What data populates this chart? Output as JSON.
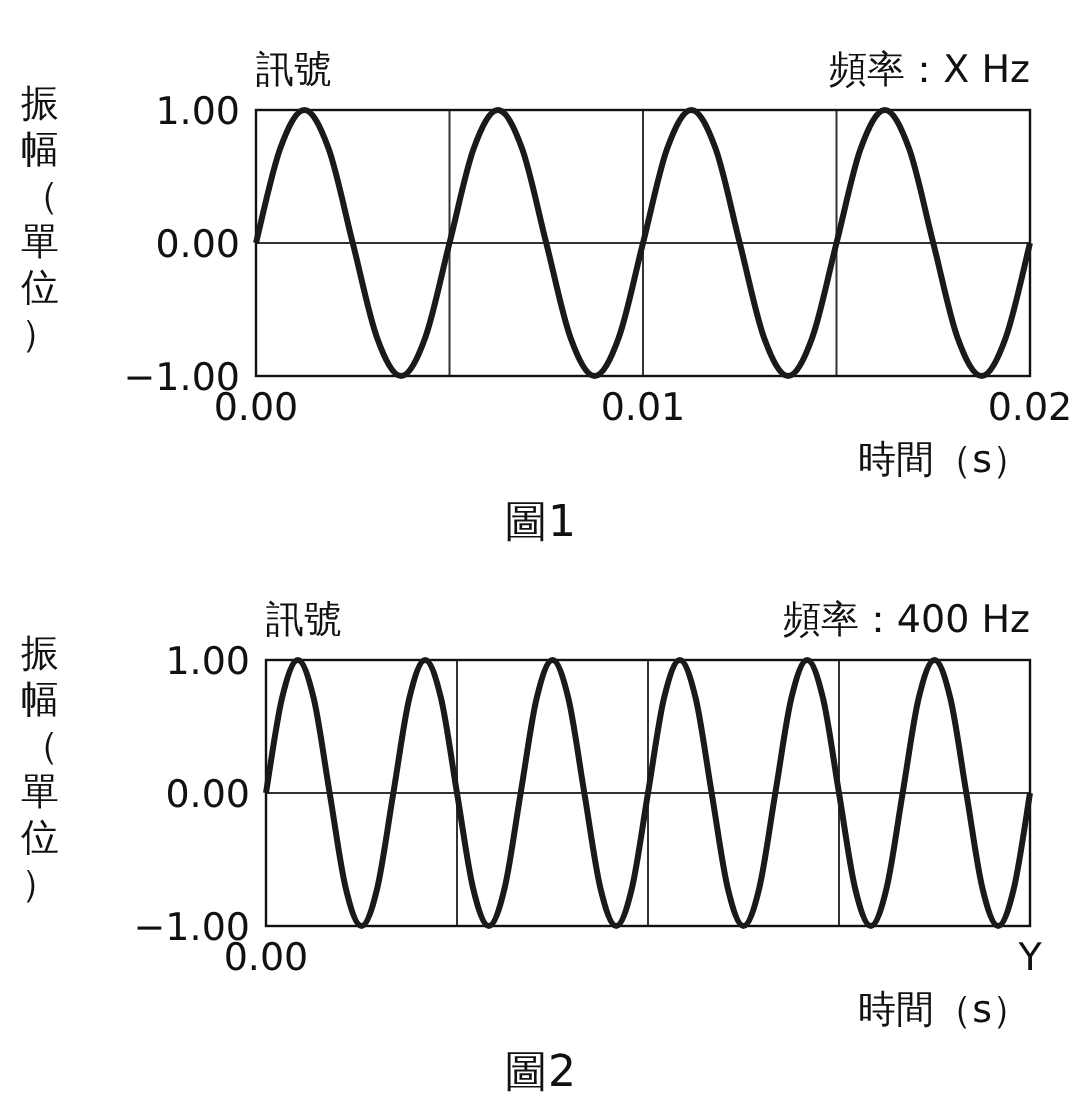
{
  "chart_data": [
    {
      "type": "line",
      "title": "訊號",
      "subtitle": "頻率：X Hz",
      "xlabel": "時間（s）",
      "ylabel": "振幅（單位）",
      "annotations": [
        "圖1"
      ],
      "x": [
        0,
        0.000625,
        0.00125,
        0.001875,
        0.0025,
        0.003125,
        0.00375,
        0.004375,
        0.005,
        0.005625,
        0.00625,
        0.006875,
        0.0075,
        0.008125,
        0.00875,
        0.009375,
        0.01,
        0.010625,
        0.01125,
        0.011875,
        0.0125,
        0.013125,
        0.01375,
        0.014375,
        0.015,
        0.015625,
        0.01625,
        0.016875,
        0.0175,
        0.018125,
        0.01875,
        0.019375,
        0.02
      ],
      "series": [
        {
          "color": "#1a1a1a",
          "values": [
            0,
            0.71,
            1,
            0.71,
            0,
            -0.71,
            -1,
            -0.71,
            0,
            0.71,
            1,
            0.71,
            0,
            -0.71,
            -1,
            -0.71,
            0,
            0.71,
            1,
            0.71,
            0,
            -0.71,
            -1,
            -0.71,
            0,
            0.71,
            1,
            0.71,
            0,
            -0.71,
            -1,
            -0.71,
            0
          ]
        }
      ],
      "xlim": [
        0,
        0.02
      ],
      "xticks": [
        {
          "value": 0,
          "label": "0.00"
        },
        {
          "value": 0.005,
          "label": null
        },
        {
          "value": 0.01,
          "label": "0.01"
        },
        {
          "value": 0.015,
          "label": null
        },
        {
          "value": 0.02,
          "label": "0.02"
        }
      ],
      "ylim": [
        -1,
        1
      ],
      "yticks": [
        {
          "value": -1,
          "label": "−1.00"
        },
        {
          "value": 0,
          "label": "0.00"
        },
        {
          "value": 1,
          "label": "1.00"
        }
      ],
      "grid": true,
      "marker": "none",
      "line_style": "solid"
    },
    {
      "type": "line",
      "title": "訊號",
      "subtitle": "頻率：400 Hz",
      "xlabel": "時間（s）",
      "ylabel": "振幅（單位）",
      "annotations": [
        "圖2"
      ],
      "categories": [
        "0.00",
        null,
        null,
        null,
        null,
        null,
        null,
        null,
        null,
        null,
        null,
        null,
        null,
        null,
        null,
        null,
        null,
        null,
        null,
        null,
        null,
        null,
        null,
        null,
        null,
        null,
        null,
        null,
        null,
        null,
        null,
        null,
        null,
        null,
        null,
        null,
        null,
        null,
        null,
        null,
        null,
        null,
        null,
        null,
        null,
        null,
        null,
        null,
        "Y"
      ],
      "series": [
        {
          "color": "#1a1a1a",
          "values": [
            0,
            0.71,
            1,
            0.71,
            0,
            -0.71,
            -1,
            -0.71,
            0,
            0.71,
            1,
            0.71,
            0,
            -0.71,
            -1,
            -0.71,
            0,
            0.71,
            1,
            0.71,
            0,
            -0.71,
            -1,
            -0.71,
            0,
            0.71,
            1,
            0.71,
            0,
            -0.71,
            -1,
            -0.71,
            0,
            0.71,
            1,
            0.71,
            0,
            -0.71,
            -1,
            -0.71,
            0,
            0.71,
            1,
            0.71,
            0,
            -0.71,
            -1,
            -0.71,
            0
          ]
        }
      ],
      "ylim": [
        -1,
        1
      ],
      "yticks": [
        {
          "value": -1,
          "label": "−1.00"
        },
        {
          "value": 0,
          "label": "0.00"
        },
        {
          "value": 1,
          "label": "1.00"
        }
      ],
      "grid": true,
      "marker": "none",
      "line_style": "solid"
    }
  ]
}
